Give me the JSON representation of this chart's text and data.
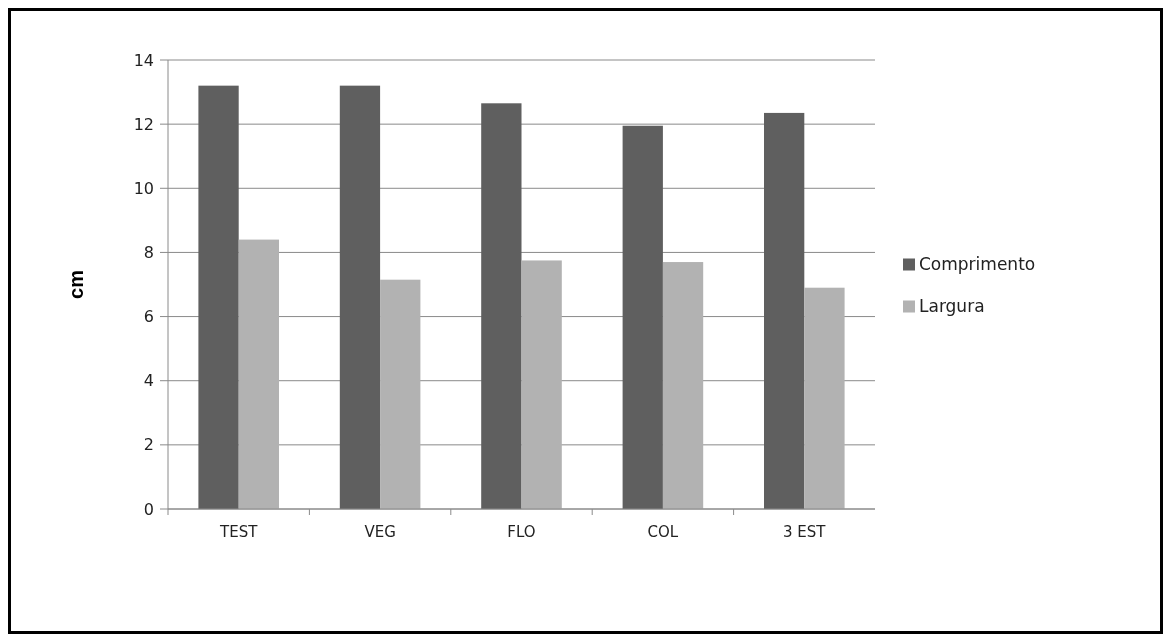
{
  "chart_data": {
    "type": "bar",
    "ylabel": "cm",
    "categories": [
      "TEST",
      "VEG",
      "FLO",
      "COL",
      "3 EST"
    ],
    "series": [
      {
        "name": "Comprimento",
        "color": "#5f5f5f",
        "values": [
          13.2,
          13.2,
          12.65,
          11.95,
          12.35
        ]
      },
      {
        "name": "Largura",
        "color": "#b2b2b2",
        "values": [
          8.4,
          7.15,
          7.75,
          7.7,
          6.9
        ]
      }
    ],
    "ylim": [
      0,
      14
    ],
    "yticks": [
      0,
      2,
      4,
      6,
      8,
      10,
      12,
      14
    ],
    "grid": "y",
    "legend": "right"
  }
}
